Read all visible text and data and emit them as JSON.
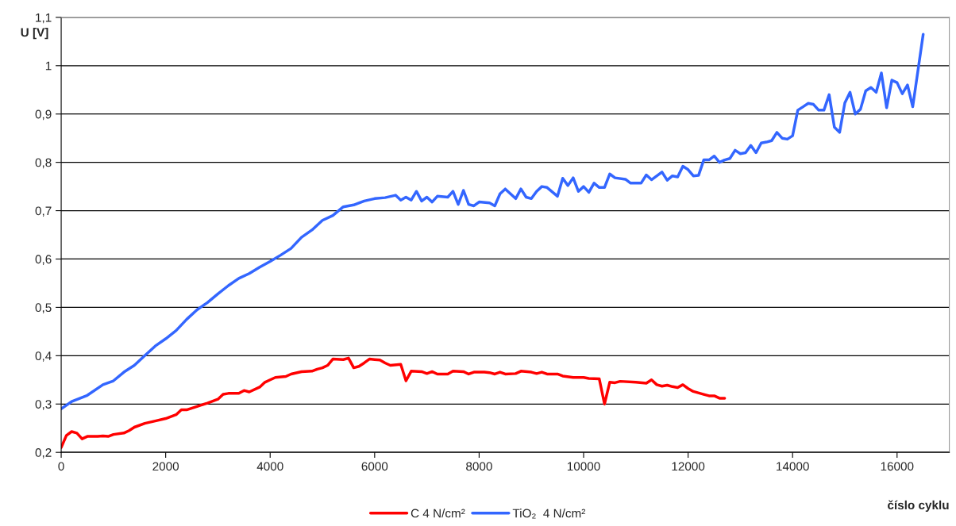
{
  "chart_data": {
    "type": "line",
    "xlabel": "číslo cyklu",
    "ylabel": "U [V]",
    "xlim": [
      0,
      17000
    ],
    "xticks": [
      0,
      2000,
      4000,
      6000,
      8000,
      10000,
      12000,
      14000,
      16000
    ],
    "ylim": [
      0.2,
      1.1
    ],
    "yticks": [
      {
        "value": 0.2,
        "label": "0,2"
      },
      {
        "value": 0.3,
        "label": "0,3"
      },
      {
        "value": 0.4,
        "label": "0,4"
      },
      {
        "value": 0.5,
        "label": "0,5"
      },
      {
        "value": 0.6,
        "label": "0,6"
      },
      {
        "value": 0.7,
        "label": "0,7"
      },
      {
        "value": 0.8,
        "label": "0,8"
      },
      {
        "value": 0.9,
        "label": "0,9"
      },
      {
        "value": 1.0,
        "label": "1"
      },
      {
        "value": 1.1,
        "label": "1,1"
      }
    ],
    "grid": "y",
    "legend": "bottom",
    "marker": "none",
    "line_style": "solid",
    "series": [
      {
        "name": "C 4 N/cm²",
        "color": "#ff0000",
        "x": [
          0,
          100,
          200,
          300,
          400,
          500,
          700,
          800,
          900,
          1000,
          1200,
          1300,
          1400,
          1600,
          1800,
          2000,
          2200,
          2300,
          2400,
          2600,
          2800,
          3000,
          3100,
          3200,
          3400,
          3500,
          3600,
          3800,
          3900,
          4000,
          4100,
          4300,
          4400,
          4600,
          4800,
          4900,
          5000,
          5100,
          5200,
          5400,
          5500,
          5600,
          5700,
          5800,
          5900,
          6000,
          6100,
          6200,
          6300,
          6500,
          6600,
          6700,
          6900,
          7000,
          7100,
          7200,
          7400,
          7500,
          7700,
          7800,
          7900,
          8100,
          8200,
          8300,
          8400,
          8500,
          8700,
          8800,
          9000,
          9100,
          9200,
          9300,
          9500,
          9600,
          9800,
          10000,
          10100,
          10300,
          10400,
          10500,
          10600,
          10700,
          11000,
          11200,
          11300,
          11400,
          11500,
          11600,
          11700,
          11800,
          11900,
          12000,
          12100,
          12300,
          12400,
          12500,
          12600,
          12700
        ],
        "values": [
          0.21,
          0.235,
          0.243,
          0.24,
          0.228,
          0.233,
          0.233,
          0.234,
          0.233,
          0.237,
          0.24,
          0.245,
          0.252,
          0.26,
          0.265,
          0.27,
          0.278,
          0.288,
          0.288,
          0.295,
          0.302,
          0.31,
          0.32,
          0.322,
          0.322,
          0.328,
          0.325,
          0.335,
          0.345,
          0.35,
          0.355,
          0.357,
          0.362,
          0.367,
          0.368,
          0.372,
          0.375,
          0.38,
          0.393,
          0.392,
          0.395,
          0.375,
          0.378,
          0.385,
          0.393,
          0.392,
          0.391,
          0.385,
          0.38,
          0.382,
          0.348,
          0.368,
          0.367,
          0.363,
          0.367,
          0.362,
          0.362,
          0.368,
          0.367,
          0.362,
          0.366,
          0.366,
          0.365,
          0.362,
          0.366,
          0.362,
          0.363,
          0.368,
          0.366,
          0.363,
          0.366,
          0.362,
          0.362,
          0.358,
          0.355,
          0.355,
          0.353,
          0.352,
          0.3,
          0.345,
          0.344,
          0.347,
          0.345,
          0.343,
          0.35,
          0.34,
          0.337,
          0.339,
          0.336,
          0.334,
          0.34,
          0.332,
          0.326,
          0.32,
          0.317,
          0.317,
          0.312,
          0.312
        ]
      },
      {
        "name": "TiO₂  4 N/cm²",
        "color": "#3366ff",
        "x": [
          0,
          200,
          500,
          800,
          1000,
          1200,
          1400,
          1600,
          1800,
          2000,
          2200,
          2400,
          2600,
          2800,
          3000,
          3200,
          3400,
          3600,
          3800,
          4000,
          4200,
          4400,
          4600,
          4800,
          5000,
          5200,
          5400,
          5600,
          5800,
          6000,
          6200,
          6400,
          6500,
          6600,
          6700,
          6800,
          6900,
          7000,
          7100,
          7200,
          7400,
          7500,
          7600,
          7700,
          7800,
          7900,
          8000,
          8200,
          8300,
          8400,
          8500,
          8700,
          8800,
          8900,
          9000,
          9100,
          9200,
          9300,
          9500,
          9600,
          9700,
          9800,
          9900,
          10000,
          10100,
          10200,
          10300,
          10400,
          10500,
          10600,
          10800,
          10900,
          11100,
          11200,
          11300,
          11500,
          11600,
          11700,
          11800,
          11900,
          12000,
          12100,
          12200,
          12300,
          12400,
          12500,
          12600,
          12700,
          12800,
          12900,
          13000,
          13100,
          13200,
          13300,
          13400,
          13500,
          13600,
          13700,
          13800,
          13900,
          14000,
          14100,
          14200,
          14300,
          14400,
          14500,
          14600,
          14700,
          14800,
          14900,
          15000,
          15100,
          15200,
          15300,
          15400,
          15500,
          15600,
          15700,
          15800,
          15900,
          16000,
          16100,
          16200,
          16300,
          16500
        ],
        "values": [
          0.29,
          0.305,
          0.318,
          0.34,
          0.348,
          0.366,
          0.38,
          0.4,
          0.42,
          0.435,
          0.452,
          0.475,
          0.495,
          0.51,
          0.528,
          0.545,
          0.56,
          0.57,
          0.583,
          0.595,
          0.608,
          0.622,
          0.645,
          0.66,
          0.68,
          0.69,
          0.708,
          0.712,
          0.72,
          0.725,
          0.727,
          0.732,
          0.722,
          0.728,
          0.722,
          0.74,
          0.72,
          0.728,
          0.718,
          0.73,
          0.728,
          0.74,
          0.713,
          0.742,
          0.713,
          0.71,
          0.718,
          0.716,
          0.71,
          0.735,
          0.745,
          0.725,
          0.745,
          0.728,
          0.725,
          0.74,
          0.75,
          0.748,
          0.73,
          0.767,
          0.752,
          0.768,
          0.74,
          0.75,
          0.738,
          0.757,
          0.748,
          0.748,
          0.776,
          0.768,
          0.765,
          0.757,
          0.757,
          0.774,
          0.764,
          0.78,
          0.763,
          0.772,
          0.77,
          0.792,
          0.785,
          0.772,
          0.773,
          0.805,
          0.805,
          0.813,
          0.8,
          0.805,
          0.808,
          0.825,
          0.818,
          0.82,
          0.835,
          0.82,
          0.84,
          0.842,
          0.845,
          0.862,
          0.85,
          0.848,
          0.855,
          0.908,
          0.915,
          0.922,
          0.92,
          0.908,
          0.908,
          0.94,
          0.873,
          0.862,
          0.923,
          0.945,
          0.9,
          0.91,
          0.948,
          0.955,
          0.945,
          0.985,
          0.913,
          0.97,
          0.965,
          0.942,
          0.96,
          0.915,
          1.065
        ]
      }
    ]
  }
}
